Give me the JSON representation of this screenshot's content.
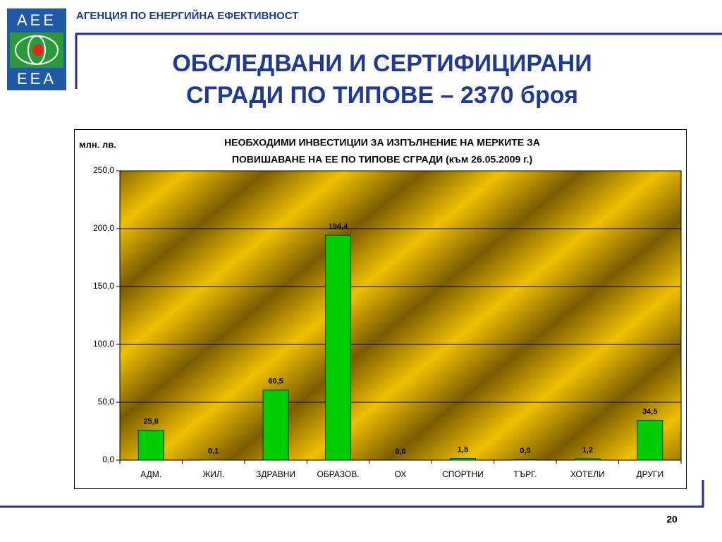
{
  "header": {
    "agency": "АГЕНЦИЯ ПО ЕНЕРГИЙНА ЕФЕКТИВНОСТ",
    "logo_top": "AEE",
    "logo_bottom": "EEA"
  },
  "slide_title": [
    "ОБСЛЕДВАНИ И СЕРТИФИЦИРАНИ",
    "СГРАДИ ПО ТИПОВЕ – 2370 броя"
  ],
  "page_number": "20",
  "chart_data": {
    "type": "bar",
    "title": [
      "НЕОБХОДИМИ ИНВЕСТИЦИИ ЗА ИЗПЪЛНЕНИЕ НА МЕРКИТЕ ЗА",
      "ПОВИШАВАНЕ НА ЕЕ ПО ТИПОВЕ СГРАДИ (към 26.05.2009 г.)"
    ],
    "ylabel": "млн. лв.",
    "categories": [
      "АДМ.",
      "ЖИЛ.",
      "ЗДРАВНИ",
      "ОБРАЗОВ.",
      "ОХ",
      "СПОРТНИ",
      "ТЪРГ.",
      "ХОТЕЛИ",
      "ДРУГИ"
    ],
    "values": [
      25.8,
      0.1,
      60.5,
      194.4,
      0.0,
      1.5,
      0.5,
      1.2,
      34.5
    ],
    "value_labels": [
      "25,8",
      "0,1",
      "60,5",
      "194,4",
      "0,0",
      "1,5",
      "0,5",
      "1,2",
      "34,5"
    ],
    "color": "#00cc00",
    "ylim": [
      0,
      250
    ],
    "yticks": [
      {
        "value": 0,
        "label": "0,0"
      },
      {
        "value": 50,
        "label": "50,0"
      },
      {
        "value": 100,
        "label": "100,0"
      },
      {
        "value": 150,
        "label": "150,0"
      },
      {
        "value": 200,
        "label": "200,0"
      },
      {
        "value": 250,
        "label": "250,0"
      }
    ],
    "grid": true
  }
}
